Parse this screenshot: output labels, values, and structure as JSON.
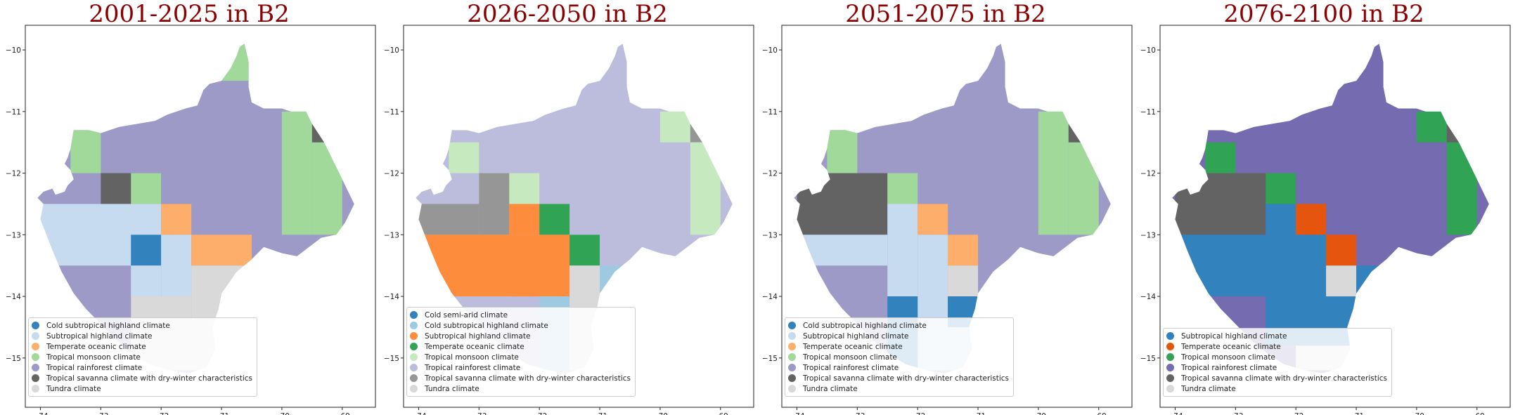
{
  "colors": {
    "cold-subtropical-highland": "#3182bd",
    "cold-subtropical-highland-light": "#9ecae1",
    "subtropical-highland-light": "#c6dbef",
    "subtropical-highland-orange": "#fd8d3c",
    "temperate-oceanic-light": "#fdae6b",
    "temperate-oceanic-green": "#31a354",
    "temperate-oceanic-red": "#e6550d",
    "tropical-monsoon-light": "#a1d99b",
    "tropical-monsoon-pale": "#c7e9c0",
    "tropical-rainforest": "#9e9ac8",
    "tropical-rainforest-light": "#bcbddc",
    "tropical-rainforest-dark": "#756bb1",
    "savanna": "#636363",
    "savanna-light": "#969696",
    "tundra": "#d9d9d9"
  },
  "chart_data": [
    {
      "type": "map",
      "title": "2001-2025 in B2",
      "xticks": [
        -74,
        -73,
        -72,
        -71,
        -70,
        -69
      ],
      "yticks": [
        -10,
        -11,
        -12,
        -13,
        -14,
        -15
      ],
      "xlim": [
        -74.25,
        -68.45
      ],
      "ylim": [
        -15.8,
        -9.6
      ],
      "legend_position": "lower-left",
      "background_color": "tropical-rainforest",
      "legend": [
        {
          "label": "Cold subtropical highland climate",
          "color": "#3182bd"
        },
        {
          "label": "Subtropical highland climate",
          "color": "#c6dbef"
        },
        {
          "label": "Temperate oceanic climate",
          "color": "#fdae6b"
        },
        {
          "label": "Tropical monsoon climate",
          "color": "#a1d99b"
        },
        {
          "label": "Tropical rainforest climate",
          "color": "#9e9ac8"
        },
        {
          "label": "Tropical savanna climate with dry-winter characteristics",
          "color": "#636363"
        },
        {
          "label": "Tundra climate",
          "color": "#d9d9d9"
        }
      ],
      "cells": [
        {
          "lon": [
            -73.5,
            -73.0
          ],
          "lat": [
            -12.0,
            -11.25
          ],
          "color": "#a1d99b"
        },
        {
          "lon": [
            -73.0,
            -72.0
          ],
          "lat": [
            -12.5,
            -12.0
          ],
          "color": "#636363"
        },
        {
          "lon": [
            -72.5,
            -72.0
          ],
          "lat": [
            -12.5,
            -12.0
          ],
          "color": "#a1d99b"
        },
        {
          "lon": [
            -71.0,
            -70.5
          ],
          "lat": [
            -10.5,
            -9.9
          ],
          "color": "#a1d99b"
        },
        {
          "lon": [
            -70.0,
            -69.5
          ],
          "lat": [
            -13.0,
            -11.0
          ],
          "color": "#a1d99b"
        },
        {
          "lon": [
            -69.5,
            -69.0
          ],
          "lat": [
            -13.0,
            -11.5
          ],
          "color": "#a1d99b"
        },
        {
          "lon": [
            -69.5,
            -69.0
          ],
          "lat": [
            -11.5,
            -11.0
          ],
          "color": "#636363"
        },
        {
          "lon": [
            -74.0,
            -72.0
          ],
          "lat": [
            -13.5,
            -12.5
          ],
          "color": "#c6dbef"
        },
        {
          "lon": [
            -72.0,
            -71.5
          ],
          "lat": [
            -13.0,
            -12.5
          ],
          "color": "#fdae6b"
        },
        {
          "lon": [
            -72.5,
            -72.0
          ],
          "lat": [
            -13.5,
            -13.0
          ],
          "color": "#3182bd"
        },
        {
          "lon": [
            -72.0,
            -71.5
          ],
          "lat": [
            -14.0,
            -13.0
          ],
          "color": "#c6dbef"
        },
        {
          "lon": [
            -71.5,
            -70.5
          ],
          "lat": [
            -13.5,
            -13.0
          ],
          "color": "#fdae6b"
        },
        {
          "lon": [
            -72.5,
            -72.0
          ],
          "lat": [
            -14.0,
            -13.5
          ],
          "color": "#c6dbef"
        },
        {
          "lon": [
            -71.5,
            -70.5
          ],
          "lat": [
            -15.2,
            -13.5
          ],
          "color": "#d9d9d9"
        },
        {
          "lon": [
            -72.5,
            -71.5
          ],
          "lat": [
            -15.2,
            -14.0
          ],
          "color": "#d9d9d9"
        }
      ]
    },
    {
      "type": "map",
      "title": "2026-2050 in B2",
      "xticks": [
        -74,
        -73,
        -72,
        -71,
        -70,
        -69
      ],
      "yticks": [
        -10,
        -11,
        -12,
        -13,
        -14,
        -15
      ],
      "xlim": [
        -74.25,
        -68.45
      ],
      "ylim": [
        -15.8,
        -9.6
      ],
      "legend_position": "lower-left",
      "background_color": "tropical-rainforest-light",
      "legend": [
        {
          "label": "Cold semi-arid climate",
          "color": "#3182bd"
        },
        {
          "label": "Cold subtropical highland climate",
          "color": "#9ecae1"
        },
        {
          "label": "Subtropical highland climate",
          "color": "#fd8d3c"
        },
        {
          "label": "Temperate oceanic climate",
          "color": "#31a354"
        },
        {
          "label": "Tropical monsoon climate",
          "color": "#c7e9c0"
        },
        {
          "label": "Tropical rainforest climate",
          "color": "#bcbddc"
        },
        {
          "label": "Tropical savanna climate with dry-winter characteristics",
          "color": "#969696"
        },
        {
          "label": "Tundra climate",
          "color": "#d9d9d9"
        }
      ],
      "cells": [
        {
          "lon": [
            -73.5,
            -73.0
          ],
          "lat": [
            -12.0,
            -11.5
          ],
          "color": "#c7e9c0"
        },
        {
          "lon": [
            -73.0,
            -72.0
          ],
          "lat": [
            -12.5,
            -12.0
          ],
          "color": "#c7e9c0"
        },
        {
          "lon": [
            -73.0,
            -72.5
          ],
          "lat": [
            -13.0,
            -12.0
          ],
          "color": "#969696"
        },
        {
          "lon": [
            -74.0,
            -73.0
          ],
          "lat": [
            -13.0,
            -12.5
          ],
          "color": "#969696"
        },
        {
          "lon": [
            -70.0,
            -69.5
          ],
          "lat": [
            -11.5,
            -11.0
          ],
          "color": "#c7e9c0"
        },
        {
          "lon": [
            -69.5,
            -69.0
          ],
          "lat": [
            -11.5,
            -11.0
          ],
          "color": "#969696"
        },
        {
          "lon": [
            -69.5,
            -69.0
          ],
          "lat": [
            -13.0,
            -11.5
          ],
          "color": "#c7e9c0"
        },
        {
          "lon": [
            -72.5,
            -72.0
          ],
          "lat": [
            -13.0,
            -12.5
          ],
          "color": "#fd8d3c"
        },
        {
          "lon": [
            -72.0,
            -71.5
          ],
          "lat": [
            -13.0,
            -12.5
          ],
          "color": "#31a354"
        },
        {
          "lon": [
            -74.0,
            -71.5
          ],
          "lat": [
            -14.0,
            -13.0
          ],
          "color": "#fd8d3c"
        },
        {
          "lon": [
            -71.5,
            -71.0
          ],
          "lat": [
            -13.5,
            -13.0
          ],
          "color": "#31a354"
        },
        {
          "lon": [
            -71.0,
            -70.5
          ],
          "lat": [
            -14.0,
            -13.5
          ],
          "color": "#9ecae1"
        },
        {
          "lon": [
            -72.5,
            -72.0
          ],
          "lat": [
            -14.0,
            -13.5
          ],
          "color": "#fd8d3c"
        },
        {
          "lon": [
            -72.0,
            -71.5
          ],
          "lat": [
            -15.2,
            -14.0
          ],
          "color": "#9ecae1"
        },
        {
          "lon": [
            -71.5,
            -71.0
          ],
          "lat": [
            -15.2,
            -13.5
          ],
          "color": "#d9d9d9"
        }
      ]
    },
    {
      "type": "map",
      "title": "2051-2075 in B2",
      "xticks": [
        -74,
        -73,
        -72,
        -71,
        -70,
        -69
      ],
      "yticks": [
        -10,
        -11,
        -12,
        -13,
        -14,
        -15
      ],
      "xlim": [
        -74.25,
        -68.45
      ],
      "ylim": [
        -15.8,
        -9.6
      ],
      "legend_position": "lower-left",
      "background_color": "tropical-rainforest",
      "legend": [
        {
          "label": "Cold subtropical highland climate",
          "color": "#3182bd"
        },
        {
          "label": "Subtropical highland climate",
          "color": "#c6dbef"
        },
        {
          "label": "Temperate oceanic climate",
          "color": "#fdae6b"
        },
        {
          "label": "Tropical monsoon climate",
          "color": "#a1d99b"
        },
        {
          "label": "Tropical rainforest climate",
          "color": "#9e9ac8"
        },
        {
          "label": "Tropical savanna climate with dry-winter characteristics",
          "color": "#636363"
        },
        {
          "label": "Tundra climate",
          "color": "#d9d9d9"
        }
      ],
      "cells": [
        {
          "lon": [
            -73.5,
            -73.0
          ],
          "lat": [
            -12.0,
            -11.25
          ],
          "color": "#a1d99b"
        },
        {
          "lon": [
            -74.0,
            -72.5
          ],
          "lat": [
            -13.0,
            -12.0
          ],
          "color": "#636363"
        },
        {
          "lon": [
            -72.5,
            -72.0
          ],
          "lat": [
            -12.5,
            -12.0
          ],
          "color": "#a1d99b"
        },
        {
          "lon": [
            -70.0,
            -69.5
          ],
          "lat": [
            -13.0,
            -11.0
          ],
          "color": "#a1d99b"
        },
        {
          "lon": [
            -69.5,
            -69.0
          ],
          "lat": [
            -13.0,
            -11.5
          ],
          "color": "#a1d99b"
        },
        {
          "lon": [
            -69.5,
            -69.0
          ],
          "lat": [
            -11.5,
            -11.0
          ],
          "color": "#636363"
        },
        {
          "lon": [
            -72.5,
            -72.0
          ],
          "lat": [
            -14.0,
            -12.5
          ],
          "color": "#c6dbef"
        },
        {
          "lon": [
            -74.0,
            -72.5
          ],
          "lat": [
            -13.5,
            -13.0
          ],
          "color": "#c6dbef"
        },
        {
          "lon": [
            -72.0,
            -71.5
          ],
          "lat": [
            -13.0,
            -12.5
          ],
          "color": "#fdae6b"
        },
        {
          "lon": [
            -71.5,
            -71.0
          ],
          "lat": [
            -13.5,
            -13.0
          ],
          "color": "#fdae6b"
        },
        {
          "lon": [
            -72.0,
            -71.5
          ],
          "lat": [
            -15.2,
            -13.0
          ],
          "color": "#c6dbef"
        },
        {
          "lon": [
            -71.5,
            -71.0
          ],
          "lat": [
            -14.0,
            -13.5
          ],
          "color": "#d9d9d9"
        },
        {
          "lon": [
            -71.5,
            -71.0
          ],
          "lat": [
            -14.5,
            -14.0
          ],
          "color": "#3182bd"
        },
        {
          "lon": [
            -72.5,
            -72.0
          ],
          "lat": [
            -15.2,
            -14.0
          ],
          "color": "#3182bd"
        },
        {
          "lon": [
            -71.5,
            -71.0
          ],
          "lat": [
            -15.2,
            -14.5
          ],
          "color": "#c6dbef"
        }
      ]
    },
    {
      "type": "map",
      "title": "2076-2100 in B2",
      "xticks": [
        -74,
        -73,
        -72,
        -71,
        -70,
        -69
      ],
      "yticks": [
        -10,
        -11,
        -12,
        -13,
        -14,
        -15
      ],
      "xlim": [
        -74.25,
        -68.45
      ],
      "ylim": [
        -15.8,
        -9.6
      ],
      "legend_position": "lower-left",
      "background_color": "tropical-rainforest-dark",
      "legend": [
        {
          "label": "Subtropical highland climate",
          "color": "#3182bd"
        },
        {
          "label": "Temperate oceanic climate",
          "color": "#e6550d"
        },
        {
          "label": "Tropical monsoon climate",
          "color": "#31a354"
        },
        {
          "label": "Tropical rainforest climate",
          "color": "#756bb1"
        },
        {
          "label": "Tropical savanna climate with dry-winter characteristics",
          "color": "#636363"
        },
        {
          "label": "Tundra climate",
          "color": "#d9d9d9"
        }
      ],
      "cells": [
        {
          "lon": [
            -73.5,
            -73.0
          ],
          "lat": [
            -12.0,
            -11.5
          ],
          "color": "#31a354"
        },
        {
          "lon": [
            -73.0,
            -72.0
          ],
          "lat": [
            -12.5,
            -12.0
          ],
          "color": "#31a354"
        },
        {
          "lon": [
            -74.0,
            -72.5
          ],
          "lat": [
            -13.0,
            -12.0
          ],
          "color": "#636363"
        },
        {
          "lon": [
            -70.0,
            -69.5
          ],
          "lat": [
            -11.5,
            -11.0
          ],
          "color": "#31a354"
        },
        {
          "lon": [
            -69.5,
            -69.0
          ],
          "lat": [
            -11.5,
            -11.0
          ],
          "color": "#636363"
        },
        {
          "lon": [
            -69.5,
            -69.0
          ],
          "lat": [
            -13.0,
            -11.5
          ],
          "color": "#31a354"
        },
        {
          "lon": [
            -72.5,
            -72.0
          ],
          "lat": [
            -13.0,
            -12.5
          ],
          "color": "#3182bd"
        },
        {
          "lon": [
            -72.0,
            -71.5
          ],
          "lat": [
            -13.0,
            -12.5
          ],
          "color": "#e6550d"
        },
        {
          "lon": [
            -74.0,
            -71.5
          ],
          "lat": [
            -14.0,
            -13.0
          ],
          "color": "#3182bd"
        },
        {
          "lon": [
            -71.5,
            -71.0
          ],
          "lat": [
            -13.5,
            -13.0
          ],
          "color": "#e6550d"
        },
        {
          "lon": [
            -71.0,
            -70.5
          ],
          "lat": [
            -14.0,
            -13.5
          ],
          "color": "#3182bd"
        },
        {
          "lon": [
            -72.5,
            -71.0
          ],
          "lat": [
            -14.8,
            -14.0
          ],
          "color": "#3182bd"
        },
        {
          "lon": [
            -71.5,
            -71.0
          ],
          "lat": [
            -14.0,
            -13.5
          ],
          "color": "#d9d9d9"
        },
        {
          "lon": [
            -72.0,
            -71.0
          ],
          "lat": [
            -15.2,
            -14.8
          ],
          "color": "#d9d9d9"
        }
      ]
    }
  ]
}
